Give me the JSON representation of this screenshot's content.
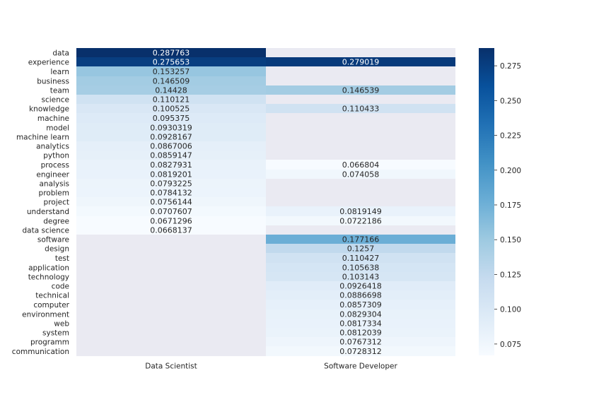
{
  "chart_data": {
    "type": "heatmap",
    "title": "",
    "xlabel": "",
    "ylabel": "",
    "columns": [
      "Data Scientist",
      "Software Developer"
    ],
    "rows": [
      "data",
      "experience",
      "learn",
      "business",
      "team",
      "science",
      "knowledge",
      "machine",
      "model",
      "machine learn",
      "analytics",
      "python",
      "process",
      "engineer",
      "analysis",
      "problem",
      "project",
      "understand",
      "degree",
      "data science",
      "software",
      "design",
      "test",
      "application",
      "technology",
      "code",
      "technical",
      "computer",
      "environment",
      "web",
      "system",
      "programm",
      "communication"
    ],
    "value_labels": [
      [
        "0.287763",
        ""
      ],
      [
        "0.275653",
        "0.279019"
      ],
      [
        "0.153257",
        ""
      ],
      [
        "0.146509",
        ""
      ],
      [
        "0.14428",
        "0.146539"
      ],
      [
        "0.110121",
        ""
      ],
      [
        "0.100525",
        "0.110433"
      ],
      [
        "0.095375",
        ""
      ],
      [
        "0.0930319",
        ""
      ],
      [
        "0.0928167",
        ""
      ],
      [
        "0.0867006",
        ""
      ],
      [
        "0.0859147",
        ""
      ],
      [
        "0.0827931",
        "0.066804"
      ],
      [
        "0.0819201",
        "0.074058"
      ],
      [
        "0.0793225",
        ""
      ],
      [
        "0.0784132",
        ""
      ],
      [
        "0.0756144",
        ""
      ],
      [
        "0.0707607",
        "0.0819149"
      ],
      [
        "0.0671296",
        "0.0722186"
      ],
      [
        "0.0668137",
        ""
      ],
      [
        "",
        "0.177166"
      ],
      [
        "",
        "0.1257"
      ],
      [
        "",
        "0.110427"
      ],
      [
        "",
        "0.105638"
      ],
      [
        "",
        "0.103143"
      ],
      [
        "",
        "0.0926418"
      ],
      [
        "",
        "0.0886698"
      ],
      [
        "",
        "0.0857309"
      ],
      [
        "",
        "0.0829304"
      ],
      [
        "",
        "0.0817334"
      ],
      [
        "",
        "0.0812039"
      ],
      [
        "",
        "0.0767312"
      ],
      [
        "",
        "0.0728312"
      ]
    ],
    "colorbar": {
      "colormap": "Blues",
      "vmin": 0.066804,
      "vmax": 0.287763,
      "ticks": [
        "0.075",
        "0.100",
        "0.125",
        "0.150",
        "0.175",
        "0.200",
        "0.225",
        "0.250",
        "0.275"
      ]
    },
    "missing_color": "#eaeaf2"
  }
}
